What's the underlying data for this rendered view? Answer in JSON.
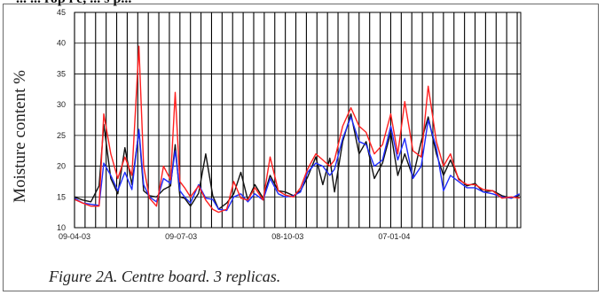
{
  "header_fragment": "...  ...  rop l e, ...  s p...",
  "caption": "Figure 2A. Centre board. 3 replicas.",
  "colors": {
    "series_black": "#111111",
    "series_blue": "#1f2cff",
    "series_red": "#ff1f1f",
    "grid": "#000000"
  },
  "chart_data": {
    "type": "line",
    "ylabel": "Moisture content %",
    "xlabel": "",
    "ylim": [
      10,
      45
    ],
    "yticks": [
      10,
      15,
      20,
      25,
      30,
      35,
      40,
      45
    ],
    "xlim": [
      "2003-04-09",
      "2004-04-24"
    ],
    "xticks": [
      {
        "date": "2003-04-09",
        "label": "09-04-03"
      },
      {
        "date": "2003-07-09",
        "label": "09-07-03"
      },
      {
        "date": "2003-10-08",
        "label": "08-10-03"
      },
      {
        "date": "2004-01-07",
        "label": "07-01-04"
      }
    ],
    "grid_vertical_step_days": 9,
    "grid": true,
    "legend": "none",
    "series": [
      {
        "color": "#111111",
        "points": [
          [
            "2003-04-09",
            15.0
          ],
          [
            "2003-04-16",
            14.5
          ],
          [
            "2003-04-23",
            14.2
          ],
          [
            "2003-04-30",
            16.8
          ],
          [
            "2003-05-04",
            26.8
          ],
          [
            "2003-05-10",
            18.0
          ],
          [
            "2003-05-16",
            15.5
          ],
          [
            "2003-05-22",
            23.0
          ],
          [
            "2003-05-28",
            17.0
          ],
          [
            "2003-06-03",
            25.8
          ],
          [
            "2003-06-07",
            16.0
          ],
          [
            "2003-06-12",
            15.2
          ],
          [
            "2003-06-18",
            15.0
          ],
          [
            "2003-06-24",
            16.2
          ],
          [
            "2003-06-30",
            16.8
          ],
          [
            "2003-07-04",
            23.5
          ],
          [
            "2003-07-08",
            15.0
          ],
          [
            "2003-07-12",
            14.8
          ],
          [
            "2003-07-17",
            13.5
          ],
          [
            "2003-07-24",
            15.6
          ],
          [
            "2003-07-30",
            22.0
          ],
          [
            "2003-08-05",
            15.2
          ],
          [
            "2003-08-10",
            13.0
          ],
          [
            "2003-08-17",
            14.0
          ],
          [
            "2003-08-23",
            15.5
          ],
          [
            "2003-08-29",
            19.0
          ],
          [
            "2003-09-04",
            14.5
          ],
          [
            "2003-09-10",
            17.0
          ],
          [
            "2003-09-17",
            14.8
          ],
          [
            "2003-09-23",
            18.5
          ],
          [
            "2003-09-30",
            16.0
          ],
          [
            "2003-10-06",
            15.8
          ],
          [
            "2003-10-13",
            15.2
          ],
          [
            "2003-10-19",
            16.0
          ],
          [
            "2003-10-25",
            18.2
          ],
          [
            "2003-11-01",
            21.5
          ],
          [
            "2003-11-07",
            17.0
          ],
          [
            "2003-11-13",
            21.3
          ],
          [
            "2003-11-17",
            15.8
          ],
          [
            "2003-11-24",
            24.0
          ],
          [
            "2003-12-01",
            28.5
          ],
          [
            "2003-12-08",
            22.0
          ],
          [
            "2003-12-14",
            24.0
          ],
          [
            "2003-12-21",
            18.0
          ],
          [
            "2003-12-28",
            20.5
          ],
          [
            "2004-01-04",
            25.5
          ],
          [
            "2004-01-10",
            18.5
          ],
          [
            "2004-01-16",
            22.0
          ],
          [
            "2004-01-23",
            18.2
          ],
          [
            "2004-01-30",
            24.0
          ],
          [
            "2004-02-05",
            28.0
          ],
          [
            "2004-02-12",
            22.0
          ],
          [
            "2004-02-18",
            18.5
          ],
          [
            "2004-02-24",
            21.0
          ],
          [
            "2004-03-02",
            18.0
          ],
          [
            "2004-03-09",
            16.8
          ],
          [
            "2004-03-16",
            17.2
          ],
          [
            "2004-03-23",
            15.8
          ],
          [
            "2004-03-31",
            16.0
          ],
          [
            "2004-04-08",
            15.2
          ],
          [
            "2004-04-16",
            14.8
          ],
          [
            "2004-04-23",
            15.3
          ]
        ]
      },
      {
        "color": "#1f2cff",
        "points": [
          [
            "2003-04-09",
            14.8
          ],
          [
            "2003-04-16",
            14.0
          ],
          [
            "2003-04-23",
            13.8
          ],
          [
            "2003-04-30",
            13.6
          ],
          [
            "2003-05-04",
            20.5
          ],
          [
            "2003-05-10",
            18.5
          ],
          [
            "2003-05-16",
            16.0
          ],
          [
            "2003-05-22",
            19.0
          ],
          [
            "2003-05-28",
            16.2
          ],
          [
            "2003-06-03",
            26.0
          ],
          [
            "2003-06-07",
            17.0
          ],
          [
            "2003-06-12",
            15.0
          ],
          [
            "2003-06-18",
            14.2
          ],
          [
            "2003-06-24",
            18.0
          ],
          [
            "2003-06-30",
            17.2
          ],
          [
            "2003-07-04",
            22.5
          ],
          [
            "2003-07-08",
            16.0
          ],
          [
            "2003-07-12",
            15.0
          ],
          [
            "2003-07-17",
            14.0
          ],
          [
            "2003-07-24",
            17.0
          ],
          [
            "2003-07-30",
            14.8
          ],
          [
            "2003-08-05",
            14.6
          ],
          [
            "2003-08-10",
            13.0
          ],
          [
            "2003-08-17",
            12.8
          ],
          [
            "2003-08-23",
            15.0
          ],
          [
            "2003-08-29",
            15.5
          ],
          [
            "2003-09-04",
            14.2
          ],
          [
            "2003-09-10",
            15.5
          ],
          [
            "2003-09-17",
            14.5
          ],
          [
            "2003-09-23",
            18.0
          ],
          [
            "2003-09-30",
            15.5
          ],
          [
            "2003-10-06",
            15.0
          ],
          [
            "2003-10-13",
            15.2
          ],
          [
            "2003-10-19",
            15.8
          ],
          [
            "2003-10-25",
            19.0
          ],
          [
            "2003-11-01",
            20.5
          ],
          [
            "2003-11-07",
            20.0
          ],
          [
            "2003-11-13",
            18.5
          ],
          [
            "2003-11-17",
            19.5
          ],
          [
            "2003-11-24",
            24.5
          ],
          [
            "2003-12-01",
            28.0
          ],
          [
            "2003-12-08",
            24.0
          ],
          [
            "2003-12-14",
            23.5
          ],
          [
            "2003-12-21",
            20.0
          ],
          [
            "2003-12-28",
            21.0
          ],
          [
            "2004-01-04",
            26.5
          ],
          [
            "2004-01-10",
            21.0
          ],
          [
            "2004-01-16",
            24.5
          ],
          [
            "2004-01-23",
            18.0
          ],
          [
            "2004-01-30",
            20.0
          ],
          [
            "2004-02-05",
            27.5
          ],
          [
            "2004-02-12",
            23.0
          ],
          [
            "2004-02-18",
            16.0
          ],
          [
            "2004-02-24",
            18.5
          ],
          [
            "2004-03-02",
            17.5
          ],
          [
            "2004-03-09",
            16.5
          ],
          [
            "2004-03-16",
            16.5
          ],
          [
            "2004-03-23",
            15.8
          ],
          [
            "2004-03-31",
            15.5
          ],
          [
            "2004-04-08",
            15.0
          ],
          [
            "2004-04-16",
            14.8
          ],
          [
            "2004-04-23",
            15.5
          ]
        ]
      },
      {
        "color": "#ff1f1f",
        "points": [
          [
            "2003-04-09",
            14.6
          ],
          [
            "2003-04-16",
            14.0
          ],
          [
            "2003-04-23",
            13.5
          ],
          [
            "2003-04-30",
            13.5
          ],
          [
            "2003-05-04",
            28.5
          ],
          [
            "2003-05-10",
            22.0
          ],
          [
            "2003-05-16",
            18.0
          ],
          [
            "2003-05-22",
            21.5
          ],
          [
            "2003-05-28",
            18.5
          ],
          [
            "2003-06-03",
            39.5
          ],
          [
            "2003-06-07",
            20.0
          ],
          [
            "2003-06-12",
            14.8
          ],
          [
            "2003-06-18",
            13.5
          ],
          [
            "2003-06-24",
            20.0
          ],
          [
            "2003-06-30",
            17.8
          ],
          [
            "2003-07-04",
            32.0
          ],
          [
            "2003-07-08",
            17.5
          ],
          [
            "2003-07-12",
            16.5
          ],
          [
            "2003-07-17",
            15.0
          ],
          [
            "2003-07-24",
            16.8
          ],
          [
            "2003-07-30",
            14.5
          ],
          [
            "2003-08-05",
            13.0
          ],
          [
            "2003-08-10",
            12.5
          ],
          [
            "2003-08-17",
            13.0
          ],
          [
            "2003-08-23",
            17.5
          ],
          [
            "2003-08-29",
            14.8
          ],
          [
            "2003-09-04",
            14.5
          ],
          [
            "2003-09-10",
            16.5
          ],
          [
            "2003-09-17",
            14.5
          ],
          [
            "2003-09-23",
            21.5
          ],
          [
            "2003-09-30",
            16.0
          ],
          [
            "2003-10-06",
            15.3
          ],
          [
            "2003-10-13",
            15.0
          ],
          [
            "2003-10-19",
            16.5
          ],
          [
            "2003-10-25",
            19.5
          ],
          [
            "2003-11-01",
            22.0
          ],
          [
            "2003-11-07",
            21.0
          ],
          [
            "2003-11-13",
            20.0
          ],
          [
            "2003-11-17",
            21.0
          ],
          [
            "2003-11-24",
            26.5
          ],
          [
            "2003-12-01",
            29.5
          ],
          [
            "2003-12-08",
            26.5
          ],
          [
            "2003-12-14",
            25.5
          ],
          [
            "2003-12-21",
            22.0
          ],
          [
            "2003-12-28",
            23.5
          ],
          [
            "2004-01-04",
            28.5
          ],
          [
            "2004-01-10",
            22.0
          ],
          [
            "2004-01-16",
            30.5
          ],
          [
            "2004-01-23",
            22.5
          ],
          [
            "2004-01-30",
            21.5
          ],
          [
            "2004-02-05",
            33.0
          ],
          [
            "2004-02-12",
            24.0
          ],
          [
            "2004-02-18",
            20.0
          ],
          [
            "2004-02-24",
            22.0
          ],
          [
            "2004-03-02",
            17.8
          ],
          [
            "2004-03-09",
            17.0
          ],
          [
            "2004-03-16",
            17.0
          ],
          [
            "2004-03-23",
            16.2
          ],
          [
            "2004-03-31",
            16.0
          ],
          [
            "2004-04-08",
            14.8
          ],
          [
            "2004-04-16",
            15.0
          ],
          [
            "2004-04-23",
            14.8
          ]
        ]
      }
    ]
  }
}
